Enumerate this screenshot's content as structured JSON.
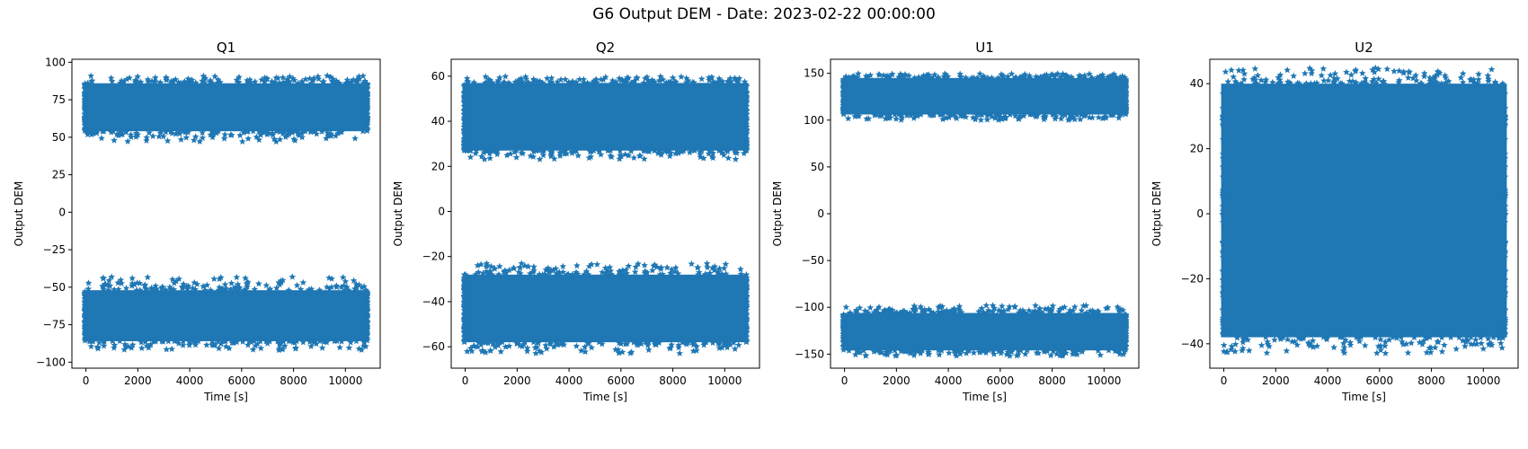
{
  "figure": {
    "suptitle": "G6 Output DEM - Date: 2023-02-22 00:00:00"
  },
  "chart_data": [
    {
      "type": "scatter",
      "marker": "star",
      "title": "Q1",
      "xlabel": "Time [s]",
      "ylabel": "Output DEM",
      "xlim": [
        -540,
        11340
      ],
      "ylim": [
        -104,
        102
      ],
      "xticks": [
        0,
        2000,
        4000,
        6000,
        8000,
        10000
      ],
      "yticks": [
        -100,
        -75,
        -50,
        -25,
        0,
        25,
        50,
        75,
        100
      ],
      "color": "#1f77b4",
      "series": [
        {
          "x_range": [
            0,
            10800
          ],
          "y_band": [
            47,
            91
          ],
          "dense_core": [
            54,
            86
          ]
        },
        {
          "x_range": [
            0,
            10800
          ],
          "y_band": [
            -92,
            -43
          ],
          "dense_core": [
            -86,
            -52
          ]
        }
      ]
    },
    {
      "type": "scatter",
      "marker": "star",
      "title": "Q2",
      "xlabel": "Time [s]",
      "ylabel": "Output DEM",
      "xlim": [
        -540,
        11340
      ],
      "ylim": [
        -69.5,
        67.5
      ],
      "xticks": [
        0,
        2000,
        4000,
        6000,
        8000,
        10000
      ],
      "yticks": [
        -60,
        -40,
        -20,
        0,
        20,
        40,
        60
      ],
      "color": "#1f77b4",
      "series": [
        {
          "x_range": [
            0,
            10800
          ],
          "y_band": [
            23,
            60
          ],
          "dense_core": [
            27,
            57
          ]
        },
        {
          "x_range": [
            0,
            10800
          ],
          "y_band": [
            -63,
            -23
          ],
          "dense_core": [
            -58,
            -28
          ]
        }
      ]
    },
    {
      "type": "scatter",
      "marker": "star",
      "title": "U1",
      "xlabel": "Time [s]",
      "ylabel": "Output DEM",
      "xlim": [
        -540,
        11340
      ],
      "ylim": [
        -165,
        165
      ],
      "xticks": [
        0,
        2000,
        4000,
        6000,
        8000,
        10000
      ],
      "yticks": [
        -150,
        -100,
        -50,
        0,
        50,
        100,
        150
      ],
      "color": "#1f77b4",
      "series": [
        {
          "x_range": [
            0,
            10800
          ],
          "y_band": [
            100,
            150
          ],
          "dense_core": [
            106,
            145
          ]
        },
        {
          "x_range": [
            0,
            10800
          ],
          "y_band": [
            -152,
            -98
          ],
          "dense_core": [
            -146,
            -106
          ]
        }
      ]
    },
    {
      "type": "scatter",
      "marker": "star",
      "title": "U2",
      "xlabel": "Time [s]",
      "ylabel": "Output DEM",
      "xlim": [
        -540,
        11340
      ],
      "ylim": [
        -47.5,
        47.5
      ],
      "xticks": [
        0,
        2000,
        4000,
        6000,
        8000,
        10000
      ],
      "yticks": [
        -40,
        -20,
        0,
        20,
        40
      ],
      "color": "#1f77b4",
      "series": [
        {
          "x_range": [
            0,
            10800
          ],
          "y_band": [
            -43,
            45
          ],
          "dense_core": [
            -38,
            40
          ]
        }
      ]
    }
  ]
}
